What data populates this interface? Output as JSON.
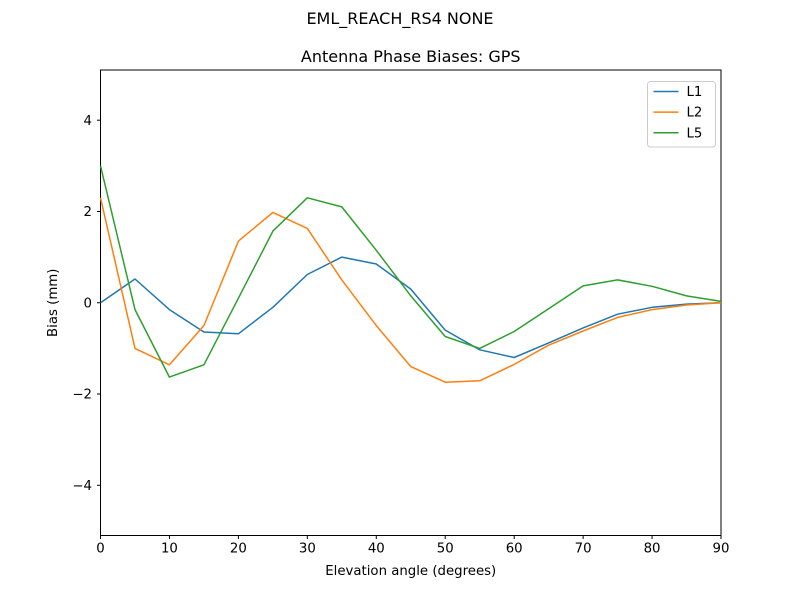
{
  "figure": {
    "suptitle": "EML_REACH_RS4   NONE",
    "background": "#ffffff",
    "text_color": "#000000",
    "spine_color": "#000000"
  },
  "chart_data": {
    "type": "line",
    "title": "Antenna Phase Biases: GPS",
    "xlabel": "Elevation angle (degrees)",
    "ylabel": "Bias (mm)",
    "xlim": [
      0,
      90
    ],
    "ylim": [
      -5.1,
      5.1
    ],
    "xticks": [
      0,
      10,
      20,
      30,
      40,
      50,
      60,
      70,
      80,
      90
    ],
    "yticks": [
      -4,
      -2,
      0,
      2,
      4
    ],
    "grid": false,
    "legend_position": "upper right",
    "legend_edge_color": "#cccccc",
    "x": [
      0,
      5,
      10,
      15,
      20,
      25,
      30,
      35,
      40,
      45,
      50,
      55,
      60,
      65,
      70,
      75,
      80,
      85,
      90
    ],
    "series": [
      {
        "name": "L1",
        "color": "#1f77b4",
        "values": [
          0.0,
          0.52,
          -0.15,
          -0.64,
          -0.68,
          -0.1,
          0.62,
          1.0,
          0.85,
          0.3,
          -0.6,
          -1.03,
          -1.2,
          -0.88,
          -0.55,
          -0.25,
          -0.1,
          -0.03,
          0.0
        ]
      },
      {
        "name": "L2",
        "color": "#ff7f0e",
        "values": [
          2.3,
          -1.0,
          -1.36,
          -0.5,
          1.35,
          1.98,
          1.63,
          0.5,
          -0.5,
          -1.4,
          -1.74,
          -1.71,
          -1.35,
          -0.93,
          -0.62,
          -0.32,
          -0.15,
          -0.05,
          0.0
        ]
      },
      {
        "name": "L5",
        "color": "#2ca02c",
        "values": [
          3.0,
          -0.15,
          -1.63,
          -1.36,
          0.1,
          1.57,
          2.3,
          2.1,
          1.15,
          0.15,
          -0.74,
          -1.0,
          -0.63,
          -0.13,
          0.37,
          0.5,
          0.36,
          0.15,
          0.03
        ]
      }
    ]
  }
}
